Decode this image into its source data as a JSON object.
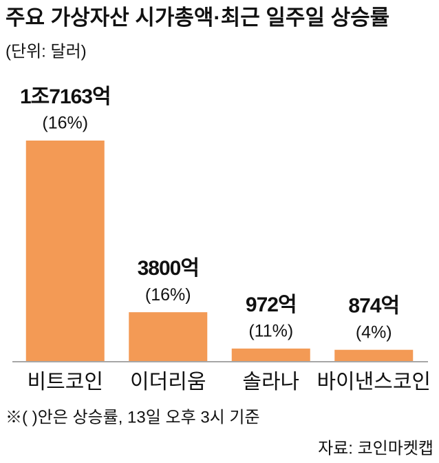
{
  "chart_data": {
    "type": "bar",
    "title": "주요 가상자산 시가총액·최근 일주일 상승률",
    "subtitle": "(단위: 달러)",
    "categories": [
      "비트코인",
      "이더리움",
      "솔라나",
      "바이낸스코인"
    ],
    "values": [
      17163,
      3800,
      972,
      874
    ],
    "value_labels": [
      "1조7163억",
      "3800억",
      "972억",
      "874억"
    ],
    "change_labels": [
      "(16%)",
      "(16%)",
      "(11%)",
      "(4%)"
    ],
    "color": "#f39a55",
    "footnote": "※( )안은 상승률, 13일 오후 3시 기준",
    "source": "자료: 코인마켓캡"
  }
}
